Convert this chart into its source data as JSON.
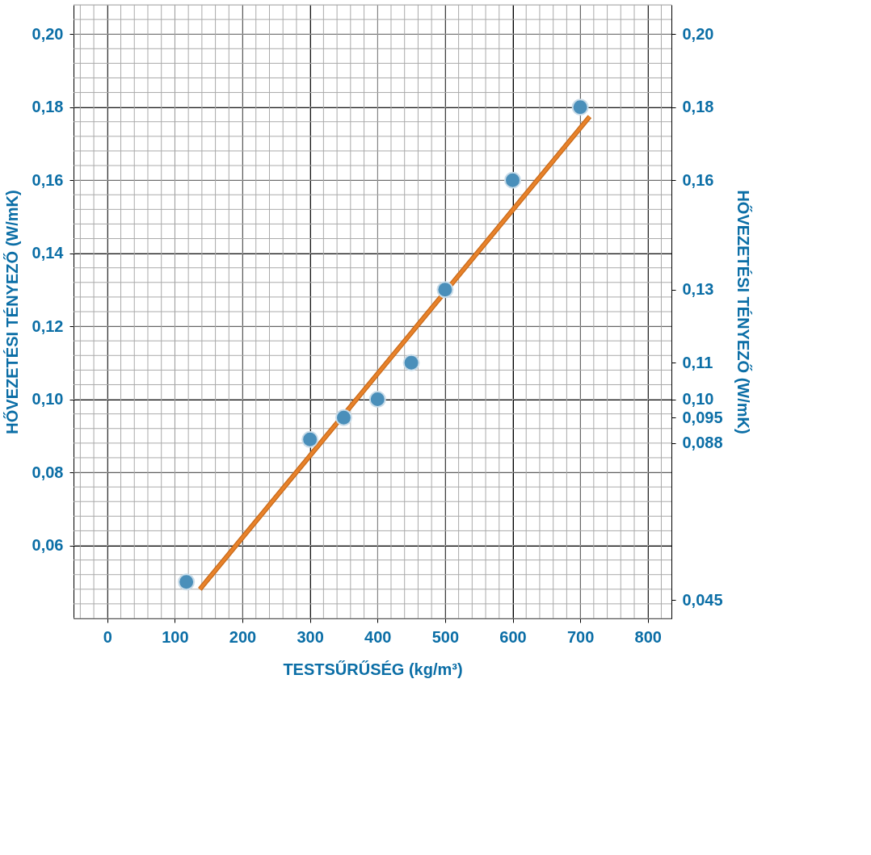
{
  "chart_data": {
    "type": "scatter",
    "xlabel": "TESTSŰRŰSÉG (kg/m³)",
    "ylabel": "HŐVEZETÉSI TÉNYEZŐ (W/mK)",
    "y2label": "HŐVEZETÉSI TÉNYEZŐ (W/mK)",
    "xlim": [
      -50,
      835
    ],
    "xticks": [
      0,
      100,
      200,
      300,
      400,
      500,
      600,
      700,
      800
    ],
    "ylim": [
      0.04,
      0.208
    ],
    "yticks": [
      {
        "value": 0.06,
        "label": "0,06"
      },
      {
        "value": 0.08,
        "label": "0,08"
      },
      {
        "value": 0.1,
        "label": "0,10"
      },
      {
        "value": 0.12,
        "label": "0,12"
      },
      {
        "value": 0.14,
        "label": "0,14"
      },
      {
        "value": 0.16,
        "label": "0,16"
      },
      {
        "value": 0.18,
        "label": "0,18"
      },
      {
        "value": 0.2,
        "label": "0,20"
      }
    ],
    "y2lim": [
      0.04,
      0.208
    ],
    "y2ticks": [
      {
        "value": 0.045,
        "label": "0,045"
      },
      {
        "value": 0.088,
        "label": "0,088"
      },
      {
        "value": 0.095,
        "label": "0,095"
      },
      {
        "value": 0.1,
        "label": "0,10"
      },
      {
        "value": 0.11,
        "label": "0,11"
      },
      {
        "value": 0.13,
        "label": "0,13"
      },
      {
        "value": 0.16,
        "label": "0,16"
      },
      {
        "value": 0.18,
        "label": "0,18"
      },
      {
        "value": 0.2,
        "label": "0,20"
      }
    ],
    "grid": true,
    "series": [
      {
        "marker": "circle",
        "color": "#4a8fba",
        "x": [
          117,
          300,
          350,
          400,
          450,
          500,
          600,
          700
        ],
        "values": [
          0.05,
          0.089,
          0.095,
          0.1,
          0.11,
          0.13,
          0.16,
          0.18
        ]
      },
      {
        "type": "line",
        "line_style": "solid",
        "color": "#e8822a",
        "x": [
          137,
          714
        ],
        "values": [
          0.048,
          0.1774
        ]
      }
    ]
  }
}
